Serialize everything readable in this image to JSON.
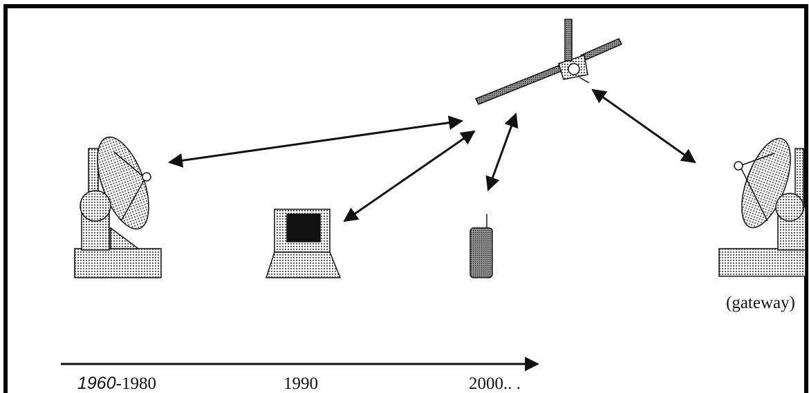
{
  "gateway_label": "(gateway)",
  "timeline": [
    [
      "1960",
      "-1980"
    ],
    [
      "1990"
    ],
    [
      "2000.. ."
    ]
  ]
}
